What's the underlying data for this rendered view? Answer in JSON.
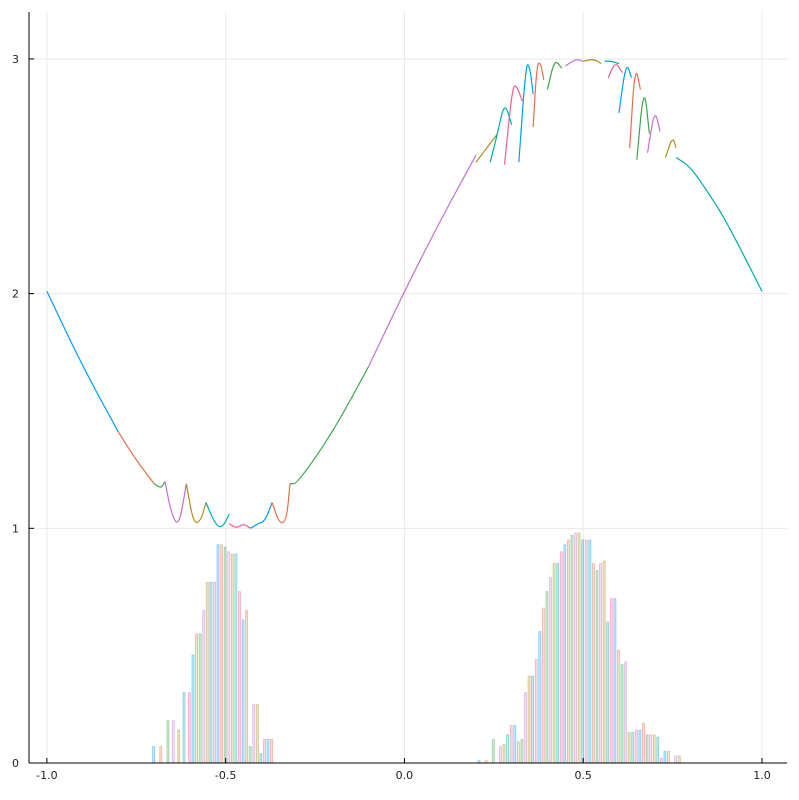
{
  "chart_data": {
    "type": "line+bar",
    "title": "",
    "xlabel": "",
    "ylabel": "",
    "xlim": [
      -1.05,
      1.07
    ],
    "ylim": [
      0,
      3.2
    ],
    "grid": true,
    "legend": "none",
    "x_ticks": [
      -1.0,
      -0.5,
      0.0,
      0.5,
      1.0
    ],
    "x_tick_labels": [
      "-1.0",
      "-0.5",
      "0.0",
      "0.5",
      "1.0"
    ],
    "y_ticks": [
      0,
      1,
      2,
      3
    ],
    "y_tick_labels": [
      "0",
      "1",
      "2",
      "3"
    ],
    "palette": [
      "#009AF9",
      "#E26F46",
      "#3DA44D",
      "#C271D2",
      "#AC8E18",
      "#00A9AD",
      "#ED5E93"
    ],
    "line_series": {
      "name": "",
      "description_formula": "y = 2 + sin(pi*x) base curve with wavy local fits near extrema",
      "segments": [
        {
          "x": [
            -1.0,
            -0.9,
            -0.8
          ],
          "y": [
            2.01,
            1.69,
            1.41
          ]
        },
        {
          "x": [
            -0.8,
            -0.75,
            -0.7
          ],
          "y": [
            1.41,
            1.29,
            1.19
          ]
        },
        {
          "x": [
            -0.7,
            -0.68,
            -0.67
          ],
          "y": [
            1.19,
            1.17,
            1.2
          ]
        },
        {
          "x": [
            -0.67,
            -0.65,
            -0.63,
            -0.61
          ],
          "y": [
            1.2,
            1.05,
            1.01,
            1.19
          ]
        },
        {
          "x": [
            -0.61,
            -0.59,
            -0.57,
            -0.555
          ],
          "y": [
            1.19,
            1.02,
            1.03,
            1.11
          ]
        },
        {
          "x": [
            -0.555,
            -0.53,
            -0.51,
            -0.49
          ],
          "y": [
            1.11,
            1.02,
            1.0,
            1.06
          ]
        },
        {
          "x": [
            -0.49,
            -0.47,
            -0.45,
            -0.43
          ],
          "y": [
            1.02,
            1.0,
            1.02,
            1.0
          ]
        },
        {
          "x": [
            -0.43,
            -0.41,
            -0.39,
            -0.37
          ],
          "y": [
            1.0,
            1.02,
            1.03,
            1.11
          ]
        },
        {
          "x": [
            -0.37,
            -0.35,
            -0.33,
            -0.32
          ],
          "y": [
            1.11,
            1.02,
            1.03,
            1.19
          ]
        },
        {
          "x": [
            -0.32,
            -0.3,
            -0.2,
            -0.1
          ],
          "y": [
            1.19,
            1.19,
            1.41,
            1.69
          ]
        },
        {
          "x": [
            -0.1,
            0.0,
            0.1,
            0.2
          ],
          "y": [
            1.69,
            2.01,
            2.31,
            2.59
          ]
        },
        {
          "x": [
            0.2,
            0.24,
            0.26
          ],
          "y": [
            2.56,
            2.64,
            2.68
          ]
        },
        {
          "x": [
            0.24,
            0.26,
            0.28,
            0.3
          ],
          "y": [
            2.56,
            2.68,
            2.82,
            2.72
          ]
        },
        {
          "x": [
            0.28,
            0.3,
            0.31,
            0.33
          ],
          "y": [
            2.55,
            2.85,
            2.9,
            2.82
          ]
        },
        {
          "x": [
            0.32,
            0.34,
            0.35,
            0.36
          ],
          "y": [
            2.56,
            2.98,
            2.97,
            2.85
          ]
        },
        {
          "x": [
            0.36,
            0.37,
            0.38,
            0.39
          ],
          "y": [
            2.71,
            2.97,
            2.99,
            2.91
          ]
        },
        {
          "x": [
            0.4,
            0.42,
            0.44
          ],
          "y": [
            2.87,
            3.0,
            2.96
          ]
        },
        {
          "x": [
            0.45,
            0.48,
            0.5
          ],
          "y": [
            2.97,
            3.0,
            2.99
          ]
        },
        {
          "x": [
            0.5,
            0.53,
            0.55
          ],
          "y": [
            2.99,
            3.0,
            2.98
          ]
        },
        {
          "x": [
            0.56,
            0.58,
            0.6
          ],
          "y": [
            2.99,
            2.99,
            2.98
          ]
        },
        {
          "x": [
            0.57,
            0.59,
            0.61
          ],
          "y": [
            2.92,
            2.99,
            2.94
          ]
        },
        {
          "x": [
            0.6,
            0.62,
            0.635
          ],
          "y": [
            2.77,
            2.99,
            2.92
          ]
        },
        {
          "x": [
            0.63,
            0.645,
            0.66
          ],
          "y": [
            2.62,
            2.98,
            2.87
          ]
        },
        {
          "x": [
            0.65,
            0.67,
            0.685
          ],
          "y": [
            2.57,
            2.9,
            2.68
          ]
        },
        {
          "x": [
            0.68,
            0.7,
            0.715
          ],
          "y": [
            2.6,
            2.79,
            2.69
          ]
        },
        {
          "x": [
            0.73,
            0.75,
            0.76
          ],
          "y": [
            2.58,
            2.67,
            2.62
          ]
        },
        {
          "x": [
            0.76,
            0.8,
            0.85,
            0.9,
            1.0
          ],
          "y": [
            2.58,
            2.54,
            2.43,
            2.31,
            2.01
          ]
        }
      ]
    },
    "bar_series": {
      "name": "",
      "bin_width": 0.0085,
      "x": [
        -0.7,
        -0.68,
        -0.66,
        -0.645,
        -0.63,
        -0.615,
        -0.6,
        -0.59,
        -0.58,
        -0.57,
        -0.56,
        -0.55,
        -0.54,
        -0.53,
        -0.52,
        -0.51,
        -0.5,
        -0.49,
        -0.48,
        -0.47,
        -0.46,
        -0.45,
        -0.44,
        -0.43,
        -0.42,
        -0.41,
        -0.4,
        -0.39,
        -0.38,
        -0.37,
        -0.36,
        -0.35,
        -0.34,
        -0.33,
        -0.32,
        0.21,
        0.23,
        0.25,
        0.27,
        0.28,
        0.29,
        0.3,
        0.31,
        0.32,
        0.33,
        0.34,
        0.35,
        0.36,
        0.37,
        0.38,
        0.39,
        0.4,
        0.41,
        0.42,
        0.43,
        0.44,
        0.45,
        0.46,
        0.47,
        0.48,
        0.49,
        0.5,
        0.51,
        0.52,
        0.53,
        0.54,
        0.55,
        0.56,
        0.57,
        0.58,
        0.59,
        0.6,
        0.61,
        0.62,
        0.63,
        0.64,
        0.65,
        0.66,
        0.67,
        0.68,
        0.69,
        0.7,
        0.71,
        0.72,
        0.73,
        0.74,
        0.75,
        0.76,
        0.77,
        0.78,
        0.79,
        0.8,
        0.81,
        0.82
      ],
      "values": [
        0.07,
        0.07,
        0.18,
        0.18,
        0.14,
        0.3,
        0.3,
        0.46,
        0.55,
        0.55,
        0.65,
        0.77,
        0.77,
        0.77,
        0.93,
        0.93,
        0.92,
        0.9,
        0.89,
        0.89,
        0.73,
        0.61,
        0.65,
        0.07,
        0.25,
        0.25,
        0.04,
        0.1,
        0.1,
        0.1,
        0.0,
        0.0,
        0.0,
        0.0,
        0.0,
        0.01,
        0.01,
        0.1,
        0.07,
        0.08,
        0.12,
        0.16,
        0.16,
        0.09,
        0.1,
        0.3,
        0.37,
        0.37,
        0.44,
        0.56,
        0.66,
        0.73,
        0.79,
        0.85,
        0.85,
        0.9,
        0.93,
        0.95,
        0.97,
        0.98,
        0.98,
        0.95,
        0.95,
        0.95,
        0.85,
        0.82,
        0.85,
        0.86,
        0.6,
        0.7,
        0.7,
        0.48,
        0.42,
        0.43,
        0.13,
        0.13,
        0.14,
        0.14,
        0.17,
        0.12,
        0.12,
        0.12,
        0.11,
        0.02,
        0.05,
        0.05,
        0.0,
        0.03,
        0.03,
        0.0,
        0.0,
        0.0,
        0.0,
        0.0
      ]
    }
  }
}
